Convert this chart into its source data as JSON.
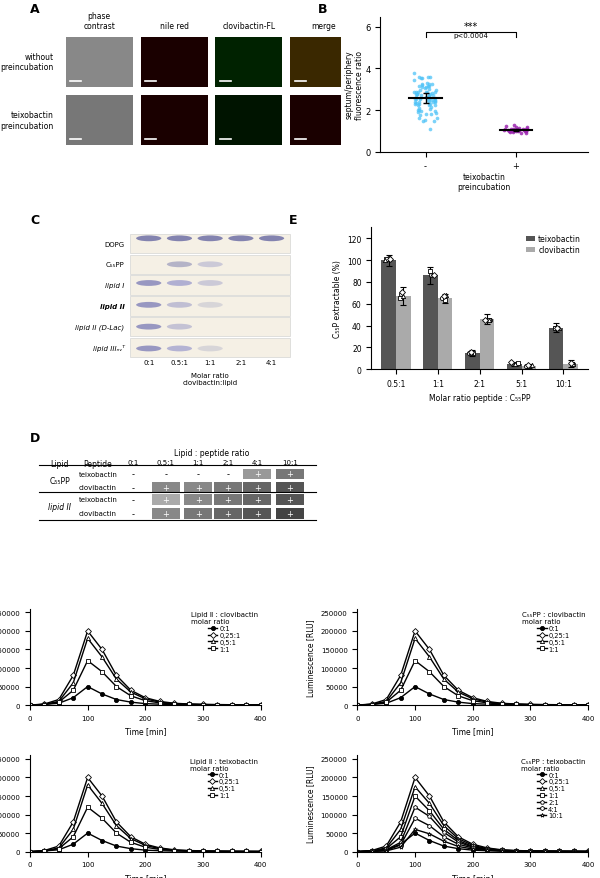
{
  "panel_B": {
    "group1_label": "-",
    "group2_label": "+",
    "xlabel": "teixobactin\npreincubation",
    "ylabel": "septum/periphery\nfluorescence ratio",
    "ylim": [
      0,
      6.5
    ],
    "yticks": [
      0,
      2,
      4,
      6
    ],
    "group1_color": "#4fc3f7",
    "group2_color": "#9c27b0",
    "group1_mean": 2.65,
    "group1_std": 0.6,
    "group2_mean": 1.05,
    "group2_std": 0.12,
    "group1_n": 80,
    "group2_n": 30
  },
  "panel_E": {
    "xlabel": "Molar ratio peptide : C₅₅PP",
    "ylabel": "C₅₅P extractable (%)",
    "ylim": [
      0,
      130
    ],
    "yticks": [
      0,
      20,
      40,
      60,
      80,
      100,
      120
    ],
    "xtick_labels": [
      "0.5:1",
      "1:1",
      "2:1",
      "5:1",
      "10:1"
    ],
    "teixobactin_color": "#555555",
    "clovibactin_color": "#aaaaaa",
    "teixobactin_values": [
      100,
      86,
      15,
      5,
      38
    ],
    "clovibactin_values": [
      67,
      65,
      46,
      3,
      5
    ],
    "teixobactin_err": [
      5,
      8,
      3,
      2,
      4
    ],
    "clovibactin_err": [
      8,
      4,
      5,
      2,
      3
    ],
    "legend_teixobactin": "teixobactin",
    "legend_clovibactin": "clovibactin"
  },
  "panel_F": {
    "time": [
      0,
      25,
      50,
      75,
      100,
      125,
      150,
      175,
      200,
      225,
      250,
      275,
      300,
      325,
      350,
      375,
      400
    ],
    "lipidII_clovibactin_0_1": [
      0,
      2000,
      5000,
      20000,
      50000,
      30000,
      15000,
      8000,
      4000,
      2500,
      1500,
      1000,
      700,
      500,
      400,
      300,
      200
    ],
    "lipidII_clovibactin_025_1": [
      0,
      3000,
      15000,
      80000,
      200000,
      150000,
      80000,
      40000,
      20000,
      10000,
      5000,
      3000,
      2000,
      1500,
      1000,
      800,
      600
    ],
    "lipidII_clovibactin_05_1": [
      0,
      2000,
      10000,
      60000,
      180000,
      130000,
      70000,
      35000,
      17000,
      8000,
      4000,
      2500,
      1500,
      1000,
      700,
      500,
      400
    ],
    "lipidII_clovibactin_1_1": [
      0,
      1500,
      8000,
      40000,
      120000,
      90000,
      50000,
      25000,
      12000,
      6000,
      3000,
      2000,
      1200,
      800,
      600,
      400,
      300
    ],
    "c55pp_clovibactin_0_1": [
      0,
      2000,
      5000,
      20000,
      50000,
      30000,
      15000,
      8000,
      4000,
      2500,
      1500,
      1000,
      700,
      500,
      400,
      300,
      200
    ],
    "c55pp_clovibactin_025_1": [
      0,
      3000,
      15000,
      80000,
      200000,
      150000,
      80000,
      40000,
      20000,
      10000,
      5000,
      3000,
      2000,
      1500,
      1000,
      800,
      600
    ],
    "c55pp_clovibactin_05_1": [
      0,
      2000,
      10000,
      60000,
      180000,
      130000,
      70000,
      35000,
      17000,
      8000,
      4000,
      2500,
      1500,
      1000,
      700,
      500,
      400
    ],
    "c55pp_clovibactin_1_1": [
      0,
      1500,
      8000,
      40000,
      120000,
      90000,
      50000,
      25000,
      12000,
      6000,
      3000,
      2000,
      1200,
      800,
      600,
      400,
      300
    ],
    "lipidII_teixobactin_0_1": [
      0,
      2000,
      5000,
      20000,
      50000,
      30000,
      15000,
      8000,
      4000,
      2500,
      1500,
      1000,
      700,
      500,
      400,
      300,
      200
    ],
    "lipidII_teixobactin_025_1": [
      0,
      3000,
      15000,
      80000,
      200000,
      150000,
      80000,
      40000,
      20000,
      10000,
      5000,
      3000,
      2000,
      1500,
      1000,
      800,
      600
    ],
    "lipidII_teixobactin_05_1": [
      0,
      2000,
      10000,
      60000,
      180000,
      130000,
      70000,
      35000,
      17000,
      8000,
      4000,
      2500,
      1500,
      1000,
      700,
      500,
      400
    ],
    "lipidII_teixobactin_1_1": [
      0,
      1500,
      8000,
      40000,
      120000,
      90000,
      50000,
      25000,
      12000,
      6000,
      3000,
      2000,
      1200,
      800,
      600,
      400,
      300
    ],
    "c55pp_teixobactin_0_1": [
      0,
      2000,
      5000,
      20000,
      50000,
      30000,
      15000,
      8000,
      4000,
      2500,
      1500,
      1000,
      700,
      500,
      400,
      300,
      200
    ],
    "c55pp_teixobactin_025_1": [
      0,
      3000,
      15000,
      80000,
      200000,
      150000,
      80000,
      40000,
      20000,
      10000,
      5000,
      3000,
      2000,
      1500,
      1000,
      800,
      600
    ],
    "c55pp_teixobactin_05_1": [
      0,
      2000,
      10000,
      60000,
      175000,
      130000,
      70000,
      35000,
      17000,
      8000,
      4000,
      2500,
      1500,
      1000,
      700,
      500,
      400
    ],
    "c55pp_teixobactin_1_1": [
      0,
      1500,
      8000,
      40000,
      150000,
      110000,
      60000,
      30000,
      14000,
      7000,
      3500,
      2200,
      1300,
      900,
      650,
      450,
      350
    ],
    "c55pp_teixobactin_2_1": [
      0,
      1000,
      5000,
      25000,
      120000,
      95000,
      52000,
      26000,
      12000,
      6000,
      3000,
      2000,
      1200,
      800,
      600,
      400,
      300
    ],
    "c55pp_teixobactin_4_1": [
      0,
      800,
      3000,
      18000,
      90000,
      70000,
      40000,
      20000,
      10000,
      5000,
      2500,
      1600,
      1000,
      700,
      500,
      350,
      250
    ],
    "c55pp_teixobactin_10_1": [
      0,
      500,
      2000,
      12000,
      60000,
      48000,
      28000,
      14000,
      7000,
      3500,
      1800,
      1200,
      750,
      500,
      380,
      280,
      200
    ]
  },
  "colors": {
    "black": "#000000",
    "white": "#ffffff",
    "group1_scatter": "#4fc3f7",
    "group2_scatter": "#9c27b0",
    "teixobactin_bar": "#555555",
    "clovibactin_bar": "#aaaaaa"
  },
  "panel_D": {
    "header": "Lipid : peptide ratio",
    "col_labels": [
      "Lipid",
      "Peptide",
      "0:1",
      "0.5:1",
      "1:1",
      "2:1",
      "4:1",
      "10:1"
    ],
    "c55pp_teixobactin": [
      "-",
      "-",
      "-",
      "-",
      "+",
      "+"
    ],
    "c55pp_clovibactin": [
      "-",
      "+",
      "+",
      "+",
      "+",
      "+"
    ],
    "lipidII_teixobactin": [
      "-",
      "+",
      "+",
      "+",
      "+",
      "+"
    ],
    "lipidII_clovibactin": [
      "-",
      "+",
      "+",
      "+",
      "+",
      "+"
    ],
    "c55pp_teixobactin_shade": [
      "#ffffff",
      "#ffffff",
      "#ffffff",
      "#ffffff",
      "#999999",
      "#777777"
    ],
    "c55pp_clovibactin_shade": [
      "#ffffff",
      "#888888",
      "#888888",
      "#777777",
      "#666666",
      "#555555"
    ],
    "lipidII_teixobactin_shade": [
      "#ffffff",
      "#aaaaaa",
      "#888888",
      "#777777",
      "#666666",
      "#555555"
    ],
    "lipidII_clovibactin_shade": [
      "#ffffff",
      "#888888",
      "#777777",
      "#666666",
      "#555555",
      "#444444"
    ]
  }
}
